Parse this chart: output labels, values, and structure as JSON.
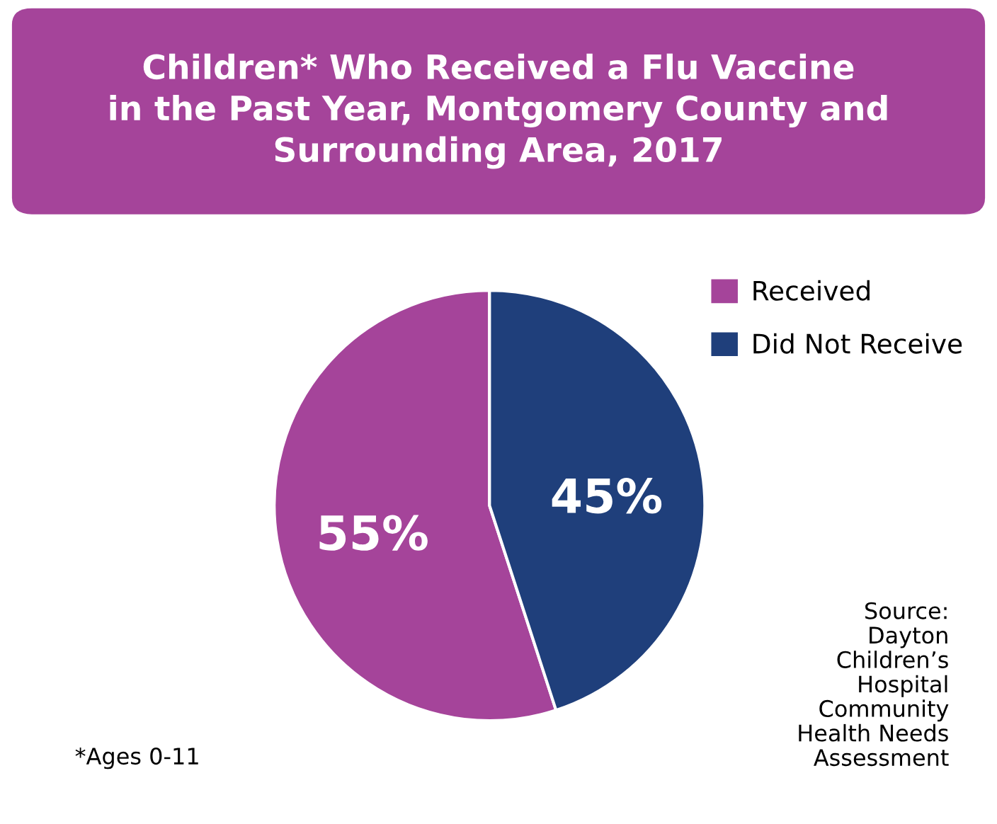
{
  "chart_data": {
    "type": "pie",
    "title": "Children* Who Received a Flu Vaccine\nin the Past Year, Montgomery County and\nSurrounding Area, 2017",
    "categories": [
      "Received",
      "Did Not Receive"
    ],
    "values": [
      55,
      45
    ],
    "colors": [
      "#a5449a",
      "#1f3f7b"
    ],
    "value_labels": [
      "55%",
      "45%"
    ],
    "legend": "top right",
    "annotations": [
      "Source:\nDayton\nChildren’s\nHospital\nCommunity\nHealth Needs\nAssessment",
      "*Ages 0-11"
    ]
  }
}
